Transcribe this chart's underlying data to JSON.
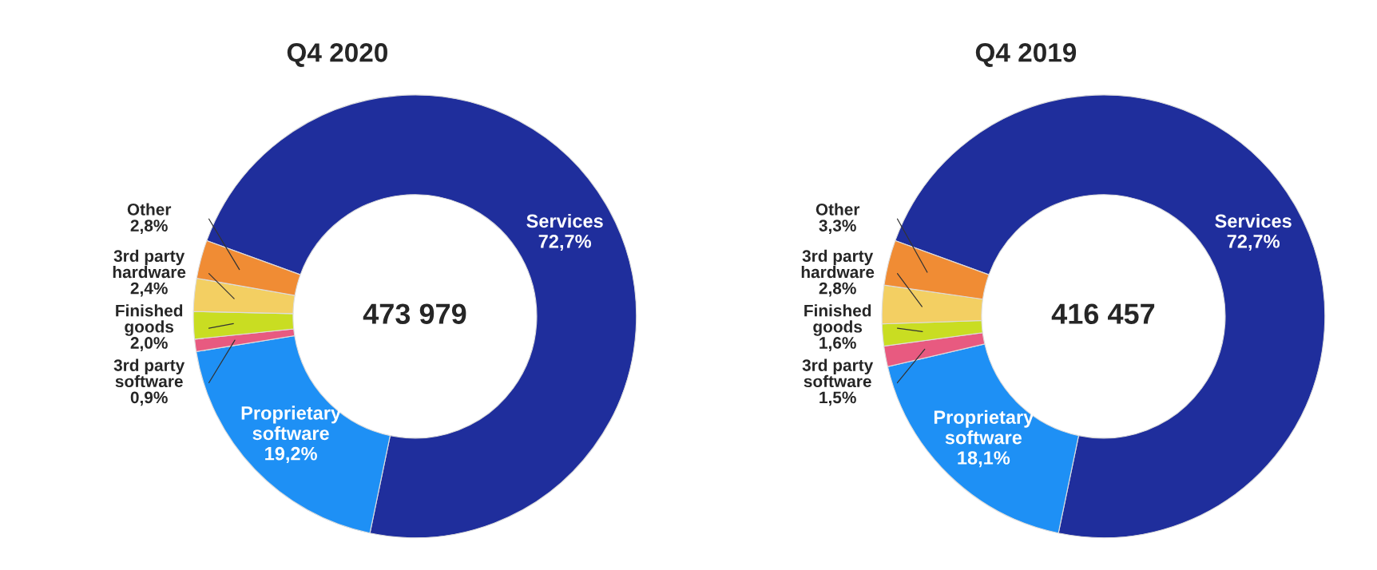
{
  "chart_data": [
    {
      "type": "donut",
      "title": "Q4 2020",
      "categories": [
        "Services",
        "Proprietary software",
        "3rd party software",
        "Finished goods",
        "3rd party hardware",
        "Other"
      ],
      "values": [
        72.7,
        19.2,
        0.9,
        2.0,
        2.4,
        2.8
      ],
      "value_labels": [
        "72,7%",
        "19,2%",
        "0,9%",
        "2,0%",
        "2,4%",
        "2,8%"
      ],
      "colors": [
        "#1f2e9c",
        "#1e90f5",
        "#e85a80",
        "#c9dd22",
        "#f3cf62",
        "#f08c34"
      ],
      "annotations": [
        "473 979"
      ],
      "legend": false
    },
    {
      "type": "donut",
      "title": "Q4 2019",
      "categories": [
        "Services",
        "Proprietary software",
        "3rd party software",
        "Finished goods",
        "3rd party hardware",
        "Other"
      ],
      "values": [
        72.7,
        18.1,
        1.5,
        1.6,
        2.8,
        3.3
      ],
      "value_labels": [
        "72,7%",
        "18,1%",
        "1,5%",
        "1,6%",
        "2,8%",
        "3,3%"
      ],
      "colors": [
        "#1f2e9c",
        "#1e90f5",
        "#e85a80",
        "#c9dd22",
        "#f3cf62",
        "#f08c34"
      ],
      "annotations": [
        "416 457"
      ],
      "legend": false
    }
  ]
}
